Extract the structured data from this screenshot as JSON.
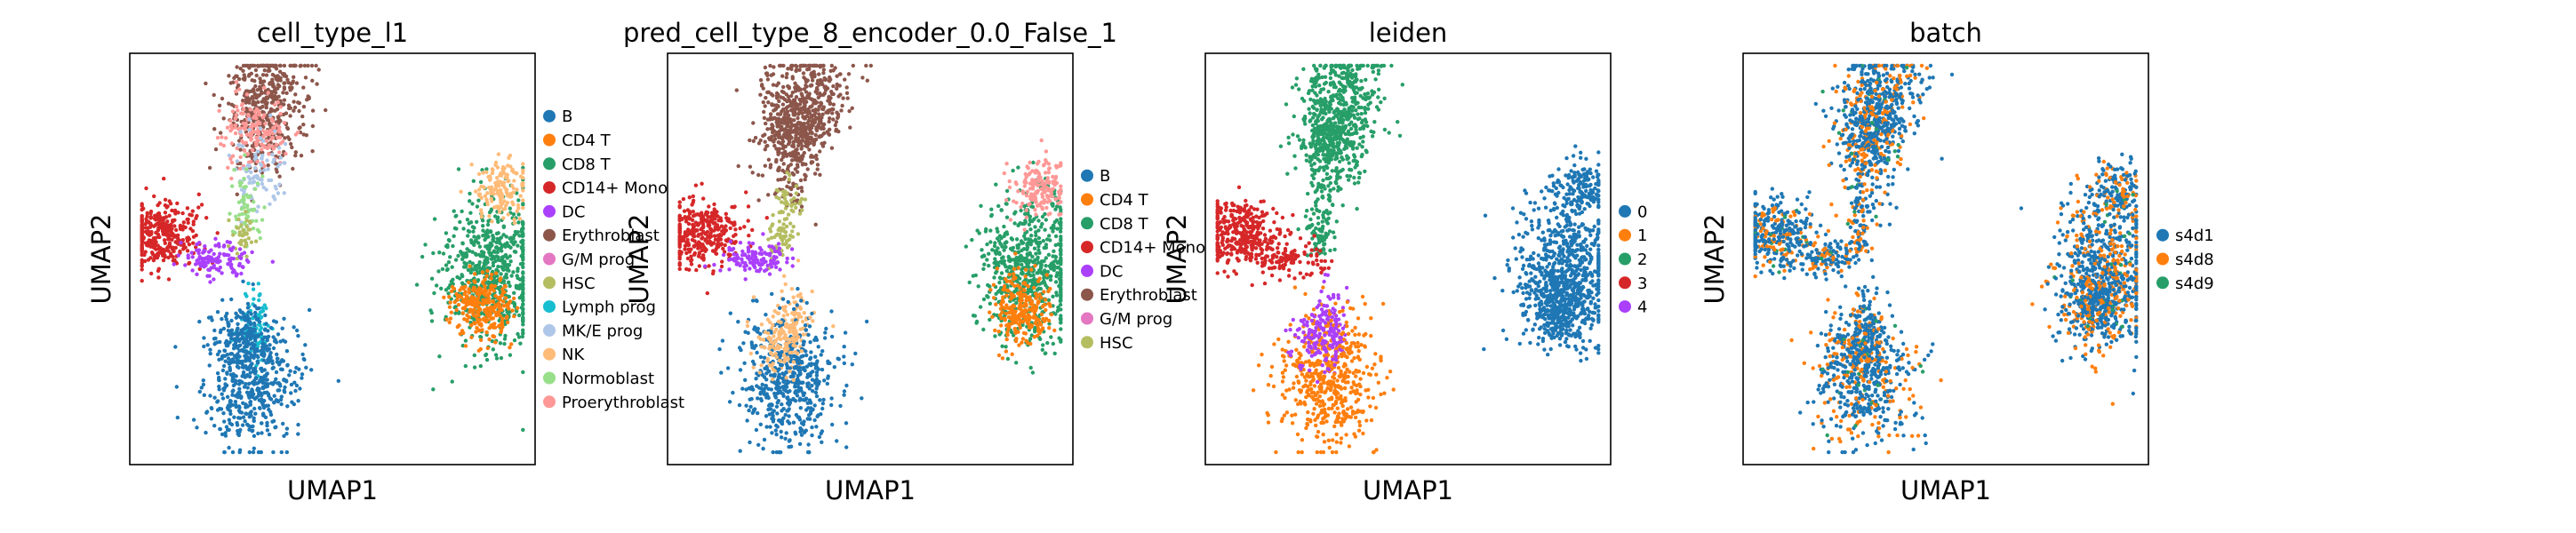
{
  "chart_data": [
    {
      "type": "scatter",
      "title": "cell_type_l1",
      "xlabel": "UMAP1",
      "ylabel": "UMAP2",
      "grid": false,
      "ticks": false,
      "legend_position": "right",
      "legend": [
        {
          "label": "B",
          "color": "#1f77b4"
        },
        {
          "label": "CD4 T",
          "color": "#ff7f0e"
        },
        {
          "label": "CD8 T",
          "color": "#279e68"
        },
        {
          "label": "CD14+ Mono",
          "color": "#d62728"
        },
        {
          "label": "DC",
          "color": "#aa40fc"
        },
        {
          "label": "Erythroblast",
          "color": "#8c564b"
        },
        {
          "label": "G/M prog",
          "color": "#e377c2"
        },
        {
          "label": "HSC",
          "color": "#b5bd61"
        },
        {
          "label": "Lymph prog",
          "color": "#17becf"
        },
        {
          "label": "MK/E prog",
          "color": "#aec7e8"
        },
        {
          "label": "NK",
          "color": "#ffbb78"
        },
        {
          "label": "Normoblast",
          "color": "#98df8a"
        },
        {
          "label": "Proerythroblast",
          "color": "#ff9896"
        }
      ]
    },
    {
      "type": "scatter",
      "title": "pred_cell_type_8_encoder_0.0_False_1",
      "xlabel": "UMAP1",
      "ylabel": "UMAP2",
      "grid": false,
      "ticks": false,
      "legend_position": "right",
      "legend": [
        {
          "label": "B",
          "color": "#1f77b4"
        },
        {
          "label": "CD4 T",
          "color": "#ff7f0e"
        },
        {
          "label": "CD8 T",
          "color": "#279e68"
        },
        {
          "label": "CD14+ Mono",
          "color": "#d62728"
        },
        {
          "label": "DC",
          "color": "#aa40fc"
        },
        {
          "label": "Erythroblast",
          "color": "#8c564b"
        },
        {
          "label": "G/M prog",
          "color": "#e377c2"
        },
        {
          "label": "HSC",
          "color": "#b5bd61"
        }
      ]
    },
    {
      "type": "scatter",
      "title": "leiden",
      "xlabel": "UMAP1",
      "ylabel": "UMAP2",
      "grid": false,
      "ticks": false,
      "legend_position": "right",
      "legend": [
        {
          "label": "0",
          "color": "#1f77b4"
        },
        {
          "label": "1",
          "color": "#ff7f0e"
        },
        {
          "label": "2",
          "color": "#279e68"
        },
        {
          "label": "3",
          "color": "#d62728"
        },
        {
          "label": "4",
          "color": "#aa40fc"
        }
      ]
    },
    {
      "type": "scatter",
      "title": "batch",
      "xlabel": "UMAP1",
      "ylabel": "UMAP2",
      "grid": false,
      "ticks": false,
      "legend_position": "right",
      "legend": [
        {
          "label": "s4d1",
          "color": "#1f77b4"
        },
        {
          "label": "s4d8",
          "color": "#ff7f0e"
        },
        {
          "label": "s4d9",
          "color": "#279e68"
        }
      ]
    }
  ]
}
